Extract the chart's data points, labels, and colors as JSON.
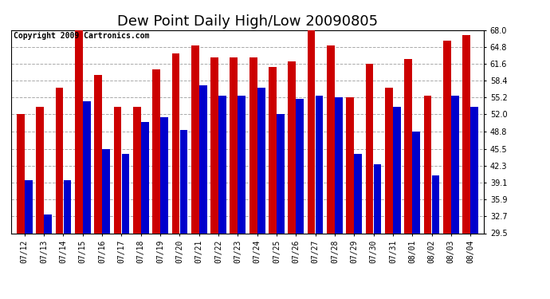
{
  "title": "Dew Point Daily High/Low 20090805",
  "copyright": "Copyright 2009 Cartronics.com",
  "dates": [
    "07/12",
    "07/13",
    "07/14",
    "07/15",
    "07/16",
    "07/17",
    "07/18",
    "07/19",
    "07/20",
    "07/21",
    "07/22",
    "07/23",
    "07/24",
    "07/25",
    "07/26",
    "07/27",
    "07/28",
    "07/29",
    "07/30",
    "07/31",
    "08/01",
    "08/02",
    "08/03",
    "08/04"
  ],
  "highs": [
    52.0,
    53.5,
    57.0,
    68.0,
    59.5,
    53.5,
    53.5,
    60.5,
    63.5,
    65.0,
    62.8,
    62.8,
    62.8,
    61.0,
    62.0,
    68.0,
    65.0,
    55.2,
    61.6,
    57.0,
    62.5,
    55.5,
    66.0,
    67.0
  ],
  "lows": [
    39.5,
    33.0,
    39.5,
    54.5,
    45.5,
    44.5,
    50.5,
    51.5,
    49.0,
    57.5,
    55.5,
    55.5,
    57.0,
    52.0,
    55.0,
    55.5,
    55.2,
    44.5,
    42.5,
    53.5,
    48.8,
    40.5,
    55.5,
    53.5
  ],
  "high_color": "#cc0000",
  "low_color": "#0000cc",
  "bg_color": "#ffffff",
  "grid_color": "#aaaaaa",
  "ymin": 29.5,
  "ymax": 68.0,
  "yticks": [
    29.5,
    32.7,
    35.9,
    39.1,
    42.3,
    45.5,
    48.8,
    52.0,
    55.2,
    58.4,
    61.6,
    64.8,
    68.0
  ],
  "title_fontsize": 13,
  "label_fontsize": 7,
  "copyright_fontsize": 7,
  "bar_width": 0.4,
  "fig_width": 6.9,
  "fig_height": 3.75,
  "dpi": 100
}
